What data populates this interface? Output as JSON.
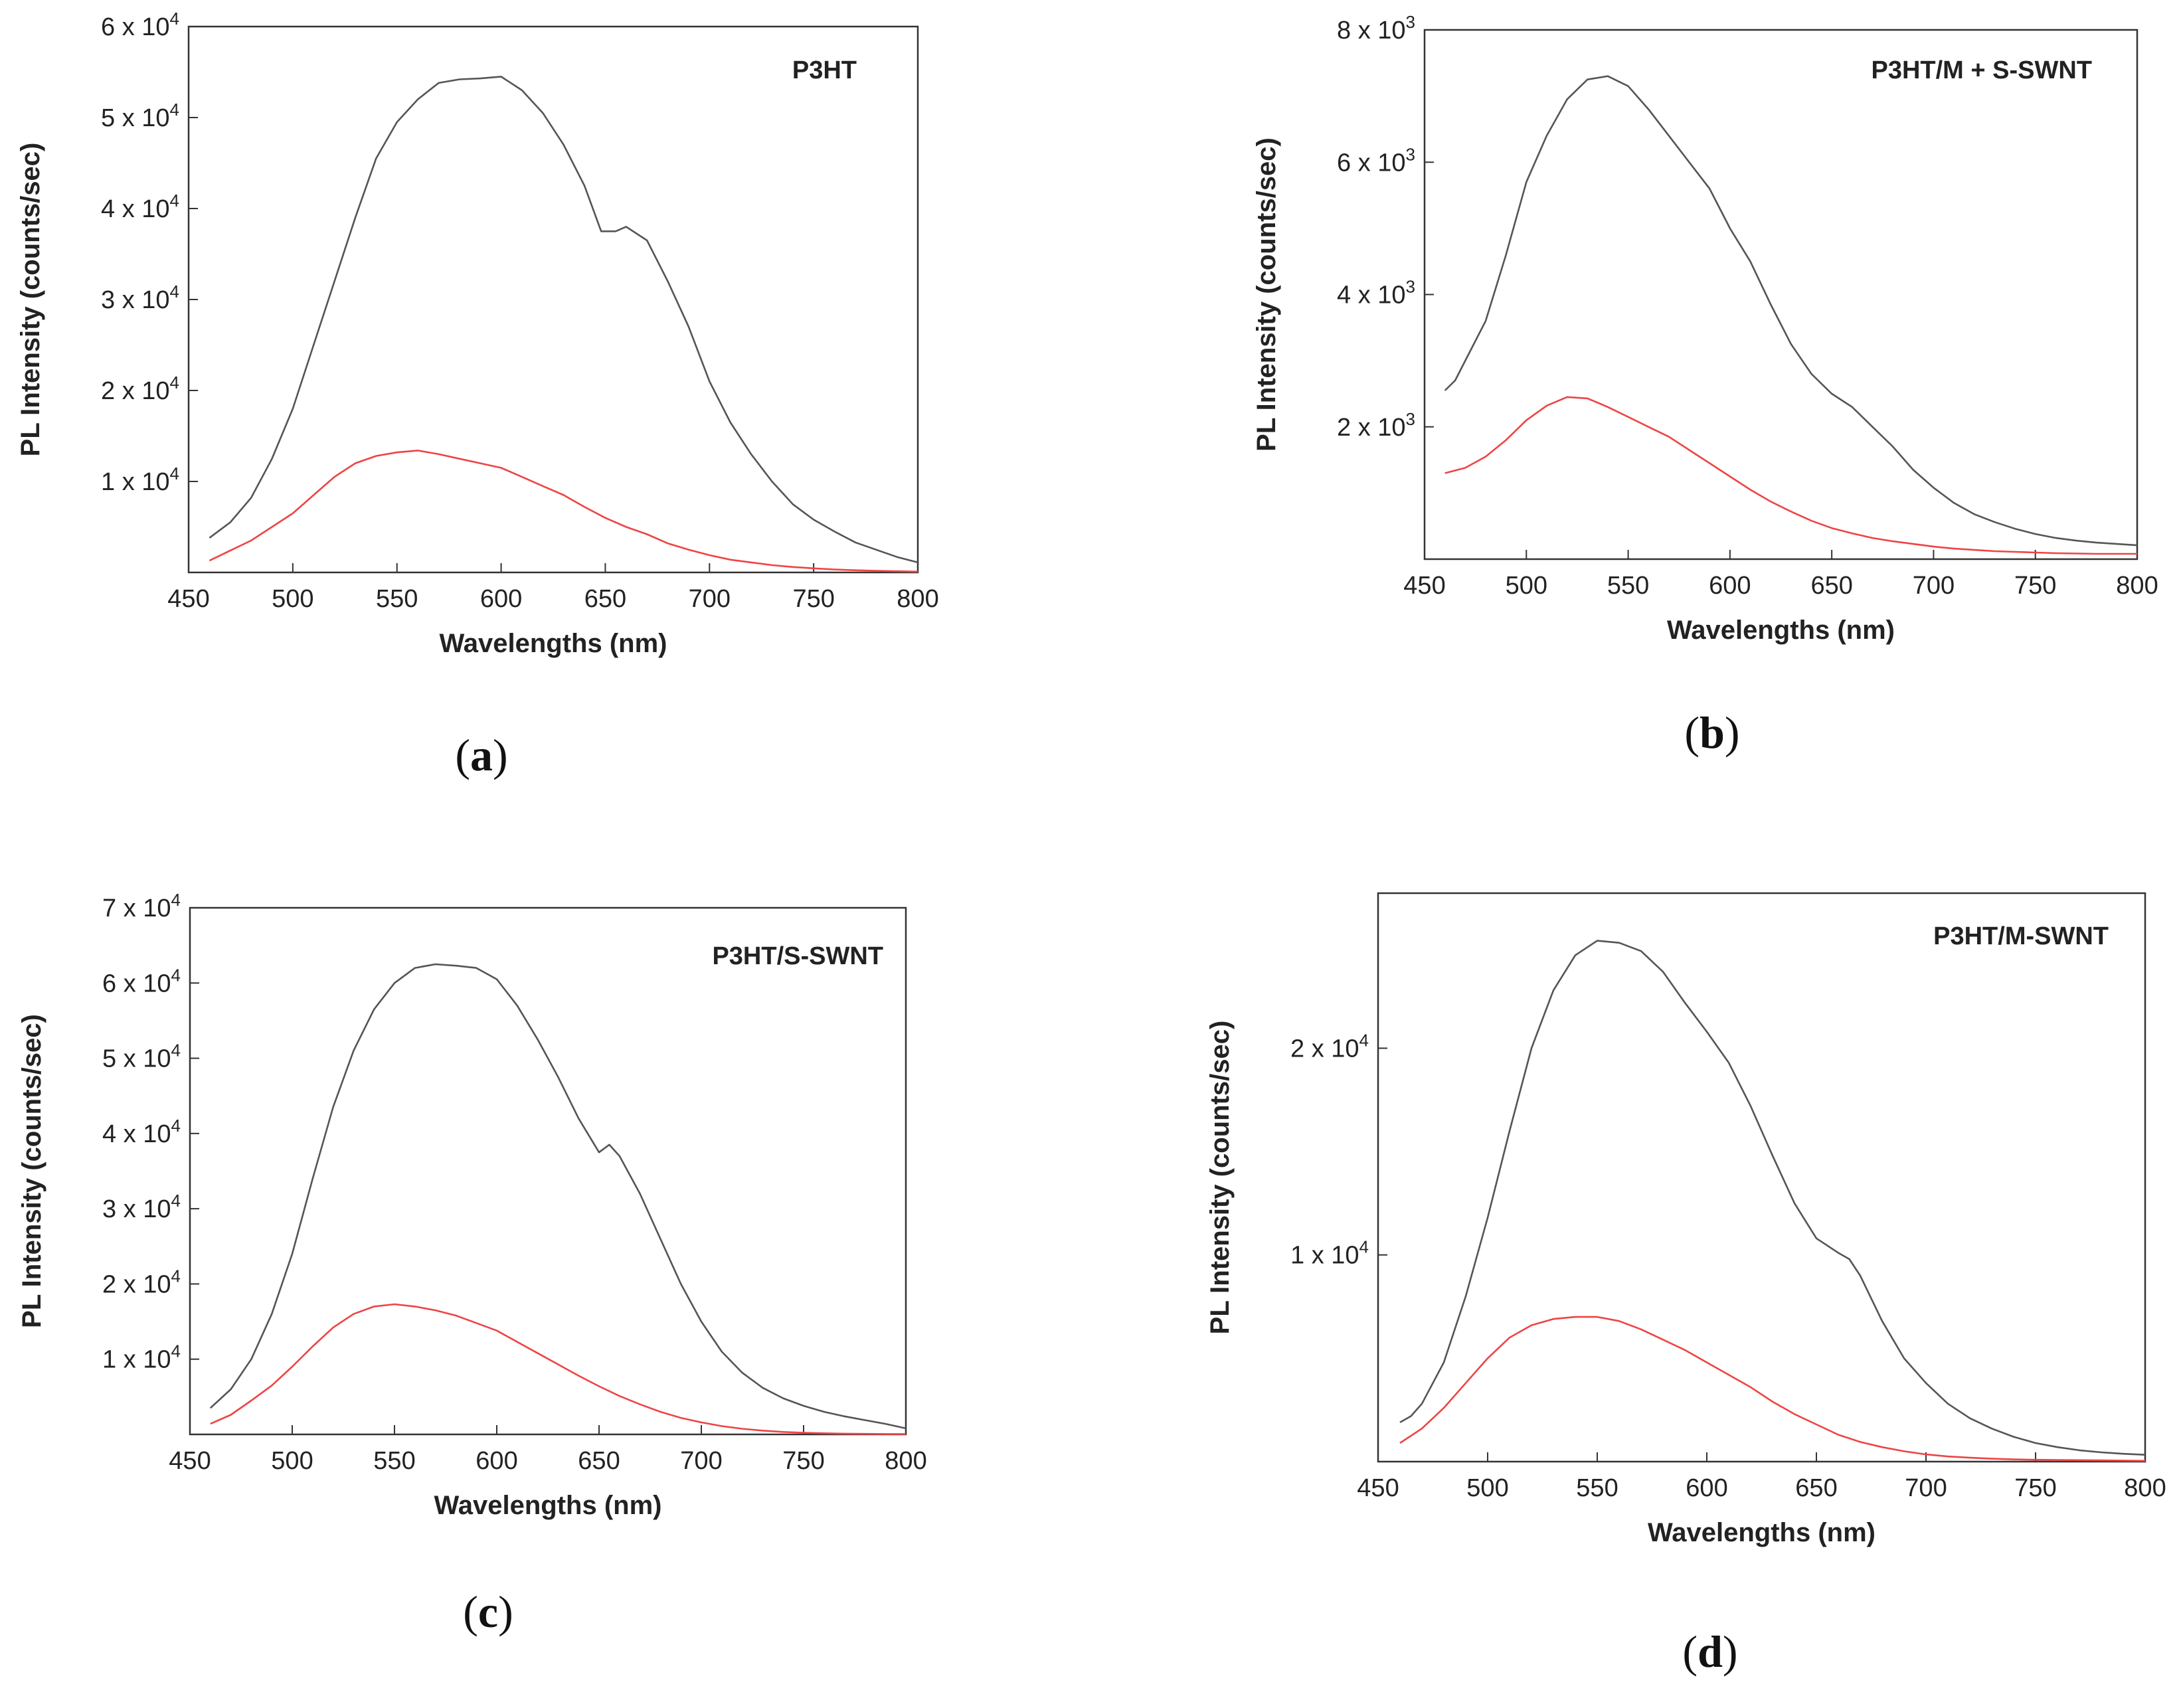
{
  "chart_data": [
    {
      "type": "line",
      "caption_letter": "a",
      "title": "P3HT",
      "xlabel": "Wavelengths (nm)",
      "ylabel": "PL Intensity (counts/sec)",
      "xlim": [
        450,
        800
      ],
      "ylim": [
        0,
        60000
      ],
      "xticks": [
        450,
        500,
        550,
        600,
        650,
        700,
        750,
        800
      ],
      "yticks": [
        {
          "value": 10000,
          "mantissa": "1",
          "exponent": "4"
        },
        {
          "value": 20000,
          "mantissa": "2",
          "exponent": "4"
        },
        {
          "value": 30000,
          "mantissa": "3",
          "exponent": "4"
        },
        {
          "value": 40000,
          "mantissa": "4",
          "exponent": "4"
        },
        {
          "value": 50000,
          "mantissa": "5",
          "exponent": "4"
        },
        {
          "value": 60000,
          "mantissa": "6",
          "exponent": "4"
        }
      ],
      "series": [
        {
          "name": "black",
          "color": "#555555",
          "x": [
            460,
            470,
            480,
            490,
            500,
            510,
            520,
            530,
            540,
            550,
            560,
            570,
            580,
            590,
            600,
            610,
            620,
            630,
            640,
            648,
            655,
            660,
            670,
            680,
            690,
            700,
            710,
            720,
            730,
            740,
            750,
            760,
            770,
            780,
            790,
            800
          ],
          "y": [
            3800,
            5500,
            8200,
            12500,
            18000,
            25000,
            32000,
            39000,
            45500,
            49500,
            52000,
            53800,
            54200,
            54300,
            54500,
            53000,
            50500,
            47000,
            42500,
            37500,
            37500,
            38000,
            36500,
            32000,
            27000,
            21000,
            16500,
            13000,
            10000,
            7500,
            5800,
            4500,
            3300,
            2500,
            1700,
            1100
          ]
        },
        {
          "name": "red",
          "color": "#ee4444",
          "x": [
            460,
            470,
            480,
            490,
            500,
            510,
            520,
            530,
            540,
            550,
            560,
            570,
            580,
            590,
            600,
            610,
            620,
            630,
            640,
            650,
            660,
            670,
            680,
            690,
            700,
            710,
            720,
            730,
            740,
            750,
            760,
            770,
            780,
            790,
            800
          ],
          "y": [
            1300,
            2400,
            3500,
            5000,
            6500,
            8500,
            10500,
            12000,
            12800,
            13200,
            13400,
            13000,
            12500,
            12000,
            11500,
            10500,
            9500,
            8500,
            7200,
            6000,
            5000,
            4200,
            3200,
            2500,
            1900,
            1400,
            1100,
            800,
            600,
            450,
            320,
            240,
            180,
            130,
            90
          ]
        }
      ]
    },
    {
      "type": "line",
      "caption_letter": "b",
      "title": "P3HT/M + S-SWNT",
      "xlabel": "Wavelengths (nm)",
      "ylabel": "PL Intensity (counts/sec)",
      "xlim": [
        450,
        800
      ],
      "ylim": [
        0,
        8000
      ],
      "xticks": [
        450,
        500,
        550,
        600,
        650,
        700,
        750,
        800
      ],
      "yticks": [
        {
          "value": 2000,
          "mantissa": "2",
          "exponent": "3"
        },
        {
          "value": 4000,
          "mantissa": "4",
          "exponent": "3"
        },
        {
          "value": 6000,
          "mantissa": "6",
          "exponent": "3"
        },
        {
          "value": 8000,
          "mantissa": "8",
          "exponent": "3"
        }
      ],
      "series": [
        {
          "name": "black",
          "color": "#555555",
          "x": [
            460,
            465,
            470,
            480,
            490,
            500,
            510,
            520,
            530,
            540,
            550,
            560,
            570,
            580,
            590,
            600,
            610,
            620,
            630,
            640,
            650,
            660,
            670,
            680,
            690,
            700,
            710,
            720,
            730,
            740,
            750,
            760,
            770,
            780,
            790,
            800
          ],
          "y": [
            2550,
            2700,
            3000,
            3600,
            4600,
            5700,
            6400,
            6950,
            7250,
            7300,
            7150,
            6800,
            6400,
            6000,
            5600,
            5000,
            4500,
            3850,
            3250,
            2800,
            2500,
            2300,
            2000,
            1700,
            1350,
            1080,
            850,
            680,
            560,
            460,
            380,
            320,
            280,
            250,
            230,
            210
          ]
        },
        {
          "name": "red",
          "color": "#ee4444",
          "x": [
            460,
            470,
            480,
            490,
            500,
            510,
            520,
            530,
            540,
            550,
            560,
            570,
            580,
            590,
            600,
            610,
            620,
            630,
            640,
            650,
            660,
            670,
            680,
            690,
            700,
            710,
            720,
            730,
            740,
            750,
            760,
            770,
            780,
            790,
            800
          ],
          "y": [
            1300,
            1380,
            1550,
            1800,
            2100,
            2320,
            2450,
            2430,
            2300,
            2150,
            2000,
            1850,
            1650,
            1450,
            1250,
            1050,
            870,
            720,
            580,
            470,
            390,
            320,
            270,
            230,
            190,
            160,
            140,
            120,
            110,
            100,
            90,
            85,
            80,
            80,
            80
          ]
        }
      ]
    },
    {
      "type": "line",
      "caption_letter": "c",
      "title": "P3HT/S-SWNT",
      "xlabel": "Wavelengths (nm)",
      "ylabel": "PL Intensity (counts/sec)",
      "xlim": [
        450,
        800
      ],
      "ylim": [
        0,
        70000
      ],
      "xticks": [
        450,
        500,
        550,
        600,
        650,
        700,
        750,
        800
      ],
      "yticks": [
        {
          "value": 10000,
          "mantissa": "1",
          "exponent": "4"
        },
        {
          "value": 20000,
          "mantissa": "2",
          "exponent": "4"
        },
        {
          "value": 30000,
          "mantissa": "3",
          "exponent": "4"
        },
        {
          "value": 40000,
          "mantissa": "4",
          "exponent": "4"
        },
        {
          "value": 50000,
          "mantissa": "5",
          "exponent": "4"
        },
        {
          "value": 60000,
          "mantissa": "6",
          "exponent": "4"
        },
        {
          "value": 70000,
          "mantissa": "7",
          "exponent": "4"
        }
      ],
      "series": [
        {
          "name": "black",
          "color": "#555555",
          "x": [
            460,
            470,
            480,
            490,
            500,
            510,
            520,
            530,
            540,
            550,
            560,
            570,
            580,
            590,
            600,
            610,
            620,
            630,
            640,
            650,
            655,
            660,
            670,
            680,
            690,
            700,
            710,
            720,
            730,
            740,
            750,
            760,
            770,
            780,
            790,
            800
          ],
          "y": [
            3500,
            6000,
            10000,
            16000,
            24000,
            34000,
            43500,
            51000,
            56500,
            60000,
            62000,
            62500,
            62300,
            62000,
            60500,
            57000,
            52500,
            47500,
            42000,
            37500,
            38500,
            37000,
            32000,
            26000,
            20000,
            15000,
            11000,
            8200,
            6200,
            4800,
            3800,
            3000,
            2400,
            1900,
            1400,
            800
          ]
        },
        {
          "name": "red",
          "color": "#ee4444",
          "x": [
            460,
            470,
            480,
            490,
            500,
            510,
            520,
            530,
            540,
            550,
            560,
            570,
            580,
            590,
            600,
            610,
            620,
            630,
            640,
            650,
            660,
            670,
            680,
            690,
            700,
            710,
            720,
            730,
            740,
            750,
            760,
            770,
            780,
            790,
            800
          ],
          "y": [
            1400,
            2600,
            4500,
            6500,
            9000,
            11700,
            14200,
            16000,
            17000,
            17300,
            17000,
            16500,
            15800,
            14800,
            13800,
            12300,
            10800,
            9300,
            7800,
            6400,
            5100,
            4000,
            3000,
            2200,
            1600,
            1100,
            750,
            500,
            330,
            220,
            150,
            100,
            70,
            50,
            40
          ]
        }
      ]
    },
    {
      "type": "line",
      "caption_letter": "d",
      "title": "P3HT/M-SWNT",
      "xlabel": "Wavelengths (nm)",
      "ylabel": "PL Intensity (counts/sec)",
      "xlim": [
        450,
        800
      ],
      "ylim": [
        0,
        27500
      ],
      "xticks": [
        450,
        500,
        550,
        600,
        650,
        700,
        750,
        800
      ],
      "yticks": [
        {
          "value": 10000,
          "mantissa": "1",
          "exponent": "4"
        },
        {
          "value": 20000,
          "mantissa": "2",
          "exponent": "4"
        }
      ],
      "series": [
        {
          "name": "black",
          "color": "#555555",
          "x": [
            460,
            465,
            470,
            480,
            490,
            500,
            510,
            520,
            530,
            540,
            550,
            560,
            570,
            580,
            590,
            600,
            610,
            620,
            630,
            640,
            650,
            660,
            665,
            670,
            680,
            690,
            700,
            710,
            720,
            730,
            740,
            750,
            760,
            770,
            780,
            790,
            800
          ],
          "y": [
            1900,
            2200,
            2800,
            4800,
            8000,
            11800,
            16000,
            20000,
            22800,
            24500,
            25200,
            25100,
            24700,
            23700,
            22200,
            20800,
            19300,
            17200,
            14800,
            12500,
            10800,
            10100,
            9800,
            9000,
            6800,
            5000,
            3800,
            2800,
            2100,
            1600,
            1200,
            900,
            700,
            550,
            450,
            380,
            330
          ]
        },
        {
          "name": "red",
          "color": "#ee4444",
          "x": [
            460,
            470,
            480,
            490,
            500,
            510,
            520,
            530,
            540,
            550,
            560,
            570,
            580,
            590,
            600,
            610,
            620,
            630,
            640,
            650,
            660,
            670,
            680,
            690,
            700,
            710,
            720,
            730,
            740,
            750,
            760,
            770,
            780,
            790,
            800
          ],
          "y": [
            900,
            1600,
            2600,
            3800,
            5000,
            6000,
            6600,
            6900,
            7000,
            7000,
            6800,
            6400,
            5900,
            5400,
            4800,
            4200,
            3600,
            2900,
            2300,
            1800,
            1300,
            950,
            700,
            500,
            350,
            250,
            190,
            140,
            110,
            90,
            80,
            70,
            60,
            50,
            40
          ]
        }
      ]
    }
  ]
}
